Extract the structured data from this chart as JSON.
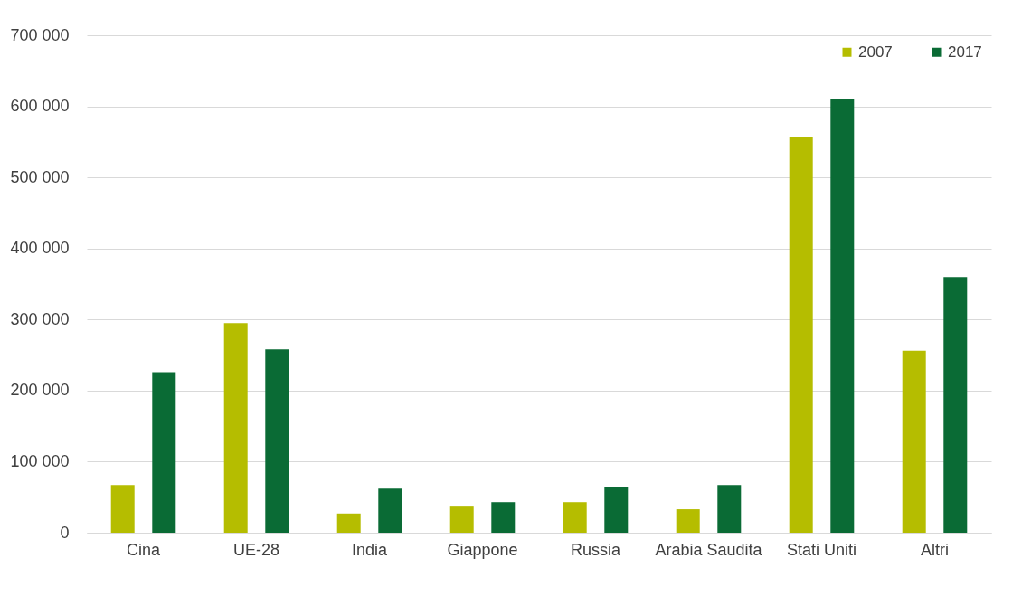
{
  "chart_data": {
    "type": "bar",
    "categories": [
      "Cina",
      "UE-28",
      "India",
      "Giappone",
      "Russia",
      "Arabia Saudita",
      "Stati Uniti",
      "Altri"
    ],
    "series": [
      {
        "name": "2007",
        "color": "#b5bd00",
        "values": [
          67000,
          295000,
          27000,
          38000,
          43000,
          33000,
          557000,
          256000
        ]
      },
      {
        "name": "2017",
        "color": "#0a6b35",
        "values": [
          226000,
          258000,
          62000,
          43000,
          65000,
          67000,
          611000,
          360000
        ]
      }
    ],
    "ylim": [
      0,
      700000
    ],
    "yticks": [
      {
        "value": 0,
        "label": "0"
      },
      {
        "value": 100000,
        "label": "100 000"
      },
      {
        "value": 200000,
        "label": "200 000"
      },
      {
        "value": 300000,
        "label": "300 000"
      },
      {
        "value": 400000,
        "label": "400 000"
      },
      {
        "value": 500000,
        "label": "500 000"
      },
      {
        "value": 600000,
        "label": "600 000"
      },
      {
        "value": 700000,
        "label": "700 000"
      }
    ],
    "grid": "y",
    "legend": "top right"
  }
}
